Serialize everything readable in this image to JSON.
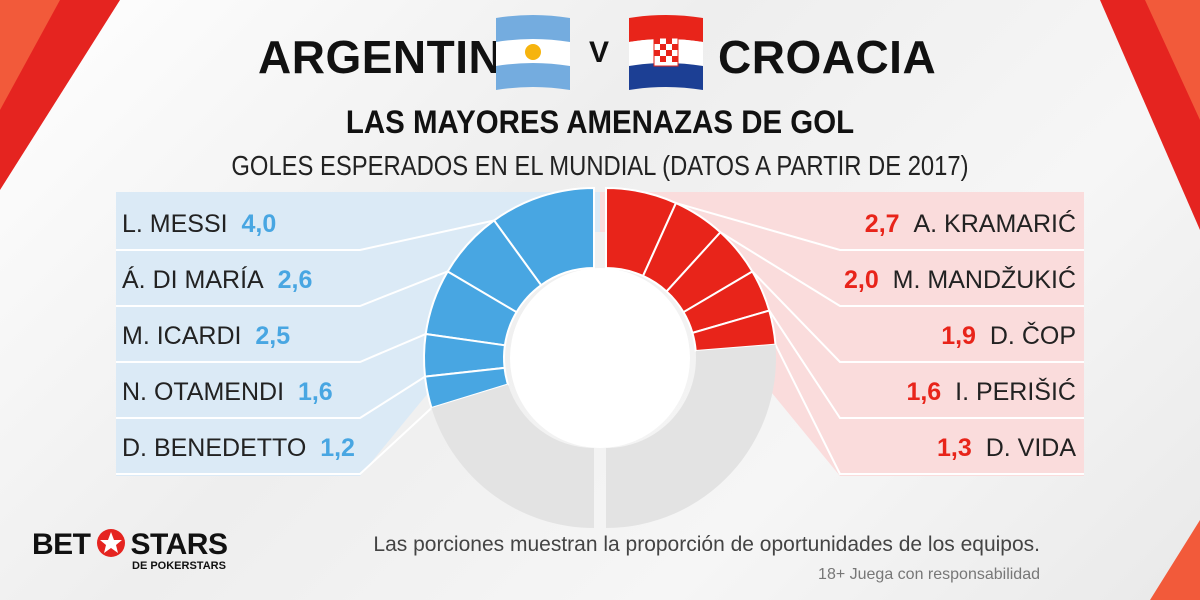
{
  "header": {
    "team_left": "ARGENTINA",
    "vs": "V",
    "team_right": "CROACIA",
    "flag_left_icon": "argentina-flag-icon",
    "flag_right_icon": "croatia-flag-icon"
  },
  "heading": "LAS MAYORES AMENAZAS DE GOL",
  "subheading": "GOLES ESPERADOS EN EL MUNDIAL (DATOS A PARTIR DE 2017)",
  "footnote": "Las porciones muestran la proporción de oportunidades de los equipos.",
  "disclaimer": "18+ Juega con responsabilidad",
  "logo": {
    "main_left": "BET",
    "main_right": "STARS",
    "sub": "DE POKERSTARS"
  },
  "colors": {
    "argentina": "#48a6e2",
    "croatia": "#e8241a",
    "remainder": "#e3e3e3",
    "argentina_bg": "#dbeaf6",
    "croatia_bg": "#fadcdc"
  },
  "chart_data": [
    {
      "type": "pie",
      "team": "ARGENTINA",
      "categories": [
        "L. MESSI",
        "Á. DI MARÍA",
        "M. ICARDI",
        "N. OTAMENDI",
        "D. BENEDETTO"
      ],
      "values": [
        4.0,
        2.6,
        2.5,
        1.6,
        1.2
      ],
      "value_labels": [
        "4,0",
        "2,6",
        "2,5",
        "1,6",
        "1,2"
      ]
    },
    {
      "type": "pie",
      "team": "CROACIA",
      "categories": [
        "A. KRAMARIĆ",
        "M. MANDŽUKIĆ",
        "D. ČOP",
        "I. PERIŠIĆ",
        "D. VIDA"
      ],
      "values": [
        2.7,
        2.0,
        1.9,
        1.6,
        1.3
      ],
      "value_labels": [
        "2,7",
        "2,0",
        "1,9",
        "1,6",
        "1,3"
      ]
    }
  ]
}
